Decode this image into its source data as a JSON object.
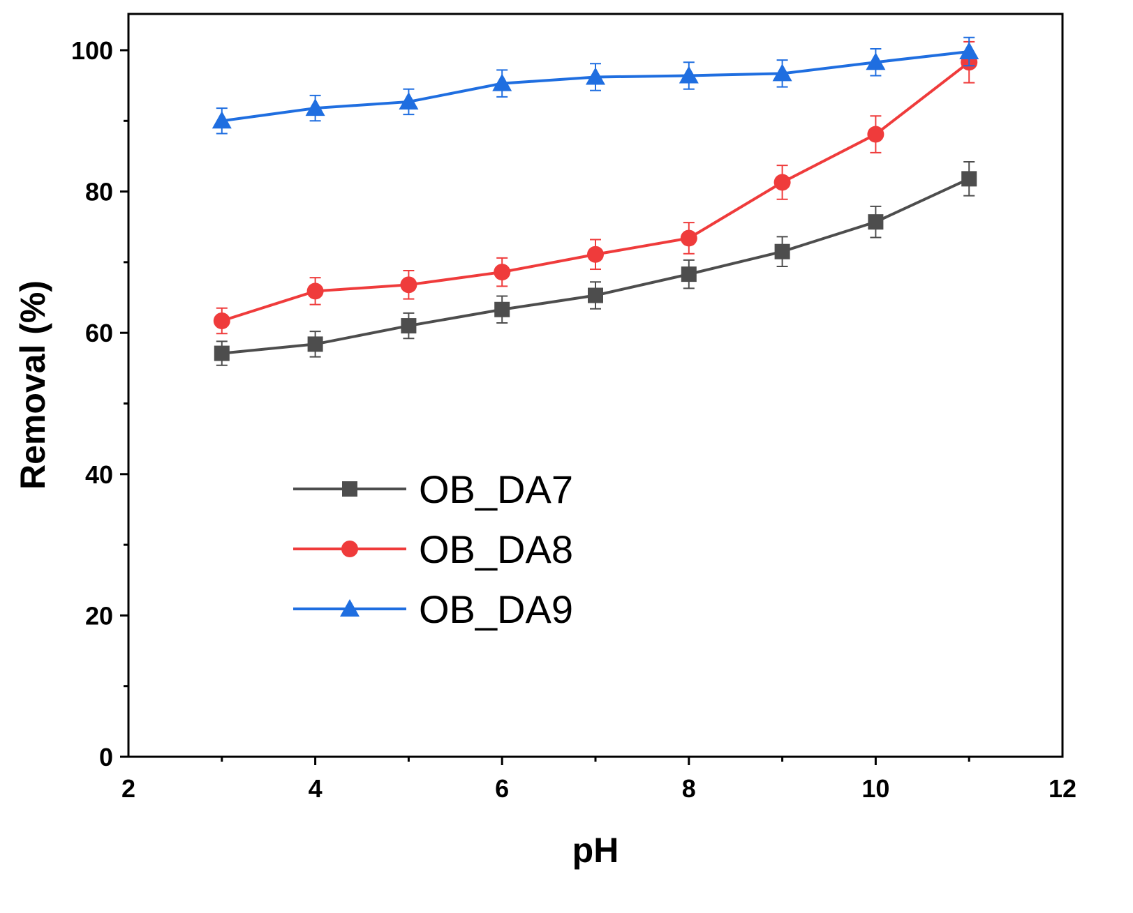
{
  "chart_data": {
    "type": "line",
    "title": "",
    "xlabel": "pH",
    "ylabel": "Removal (%)",
    "xlim": [
      2,
      12
    ],
    "ylim": [
      0,
      105
    ],
    "x_ticks": [
      "2",
      "4",
      "6",
      "8",
      "10",
      "12"
    ],
    "y_ticks": [
      "0",
      "20",
      "40",
      "60",
      "80",
      "100"
    ],
    "grid": false,
    "legend_position": "center-left",
    "x": [
      3,
      4,
      5,
      6,
      7,
      8,
      9,
      10,
      11
    ],
    "series": [
      {
        "name": "OB_DA7",
        "color": "#4d4d4d",
        "marker": "square",
        "values": [
          57.1,
          58.4,
          61.0,
          63.3,
          65.3,
          68.3,
          71.5,
          75.7,
          81.8
        ],
        "errors": [
          1.7,
          1.8,
          1.8,
          1.9,
          1.9,
          2.0,
          2.1,
          2.2,
          2.4
        ]
      },
      {
        "name": "OB_DA8",
        "color": "#ef3b3b",
        "marker": "circle",
        "values": [
          61.7,
          65.9,
          66.8,
          68.6,
          71.1,
          73.4,
          81.3,
          88.1,
          98.3
        ],
        "errors": [
          1.8,
          1.9,
          2.0,
          2.0,
          2.1,
          2.2,
          2.4,
          2.6,
          2.9
        ]
      },
      {
        "name": "OB_DA9",
        "color": "#1f6ee0",
        "marker": "triangle",
        "values": [
          90.0,
          91.8,
          92.7,
          95.3,
          96.2,
          96.4,
          96.7,
          98.3,
          99.8
        ],
        "errors": [
          1.8,
          1.8,
          1.8,
          1.9,
          1.9,
          1.9,
          1.9,
          1.9,
          2.0
        ]
      }
    ]
  }
}
